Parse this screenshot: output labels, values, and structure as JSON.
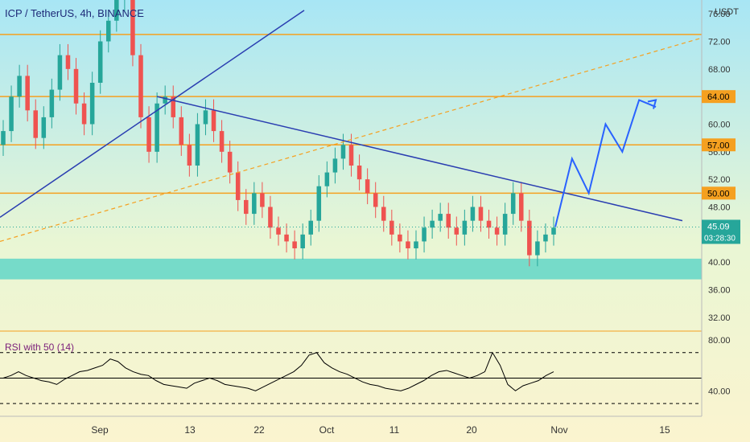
{
  "header": {
    "ticker_label": "ICP / TetherUS, 4h, BINANCE",
    "currency": "USDT"
  },
  "colors": {
    "level_line": "#f5a020",
    "trendline": "#2a3eb1",
    "projection": "#2962ff",
    "support_zone": "#4fd1c5",
    "candle_up": "#26a69a",
    "candle_down": "#ef5350",
    "price_tag": "#26a69a",
    "level_tag": "#f5a020",
    "rsi_line": "#000000"
  },
  "chart_data": [
    {
      "type": "candlestick",
      "title": "ICP / TetherUS, 4h, BINANCE",
      "ylabel": "USDT",
      "ylim": [
        30,
        78
      ],
      "y_ticks": [
        32,
        36,
        40,
        44,
        48,
        52,
        56,
        60,
        68,
        72,
        76
      ],
      "y_tick_labels": [
        "32.00",
        "36.00",
        "40.00",
        "44.00",
        "48.00",
        "52.00",
        "56.00",
        "60.00",
        "68.00",
        "72.00",
        "76.00"
      ],
      "x_ticks": [
        "Sep",
        "13",
        "22",
        "Oct",
        "11",
        "20",
        "Nov",
        "15"
      ],
      "price_closes": [
        59,
        64,
        67,
        62,
        58,
        61,
        65,
        70,
        68,
        63,
        60,
        66,
        72,
        75,
        78,
        80,
        70,
        61,
        56,
        63,
        64,
        61,
        57,
        54,
        60,
        62,
        59,
        56,
        53,
        49,
        47,
        50,
        48,
        45,
        44,
        43,
        42,
        44,
        46,
        51,
        53,
        55,
        57,
        54,
        52,
        50,
        48,
        46,
        44,
        43,
        42,
        43,
        45,
        46,
        47,
        45,
        44,
        46,
        48,
        46,
        45,
        44,
        47,
        50,
        46,
        41,
        43,
        44,
        45
      ],
      "horizontal_levels": [
        {
          "value": 73,
          "label": ""
        },
        {
          "value": 64,
          "label": "64.00"
        },
        {
          "value": 57,
          "label": "57.00"
        },
        {
          "value": 50,
          "label": "50.00"
        }
      ],
      "support_zone": [
        37.5,
        40.5
      ],
      "current_price": {
        "value": 45.09,
        "label": "45.09",
        "countdown": "03:28:30"
      },
      "projection_path": [
        45.09,
        55,
        50,
        60,
        56,
        63.5,
        62.5
      ]
    },
    {
      "type": "line",
      "title": "RSI with 50 (14)",
      "ylim": [
        20,
        85
      ],
      "y_ticks": [
        40,
        80
      ],
      "y_tick_labels": [
        "40.00",
        "80.00"
      ],
      "bands": [
        70,
        30
      ],
      "midline": 50,
      "values": [
        50,
        52,
        55,
        52,
        50,
        48,
        47,
        45,
        49,
        52,
        55,
        56,
        58,
        60,
        65,
        63,
        58,
        55,
        53,
        52,
        48,
        45,
        44,
        43,
        42,
        46,
        48,
        50,
        48,
        45,
        44,
        43,
        42,
        40,
        43,
        46,
        49,
        52,
        55,
        60,
        68,
        70,
        62,
        58,
        55,
        53,
        50,
        47,
        45,
        44,
        42,
        41,
        40,
        42,
        45,
        48,
        52,
        55,
        56,
        54,
        52,
        50,
        52,
        55,
        70,
        60,
        45,
        40,
        44,
        46,
        48,
        52,
        55
      ]
    }
  ]
}
